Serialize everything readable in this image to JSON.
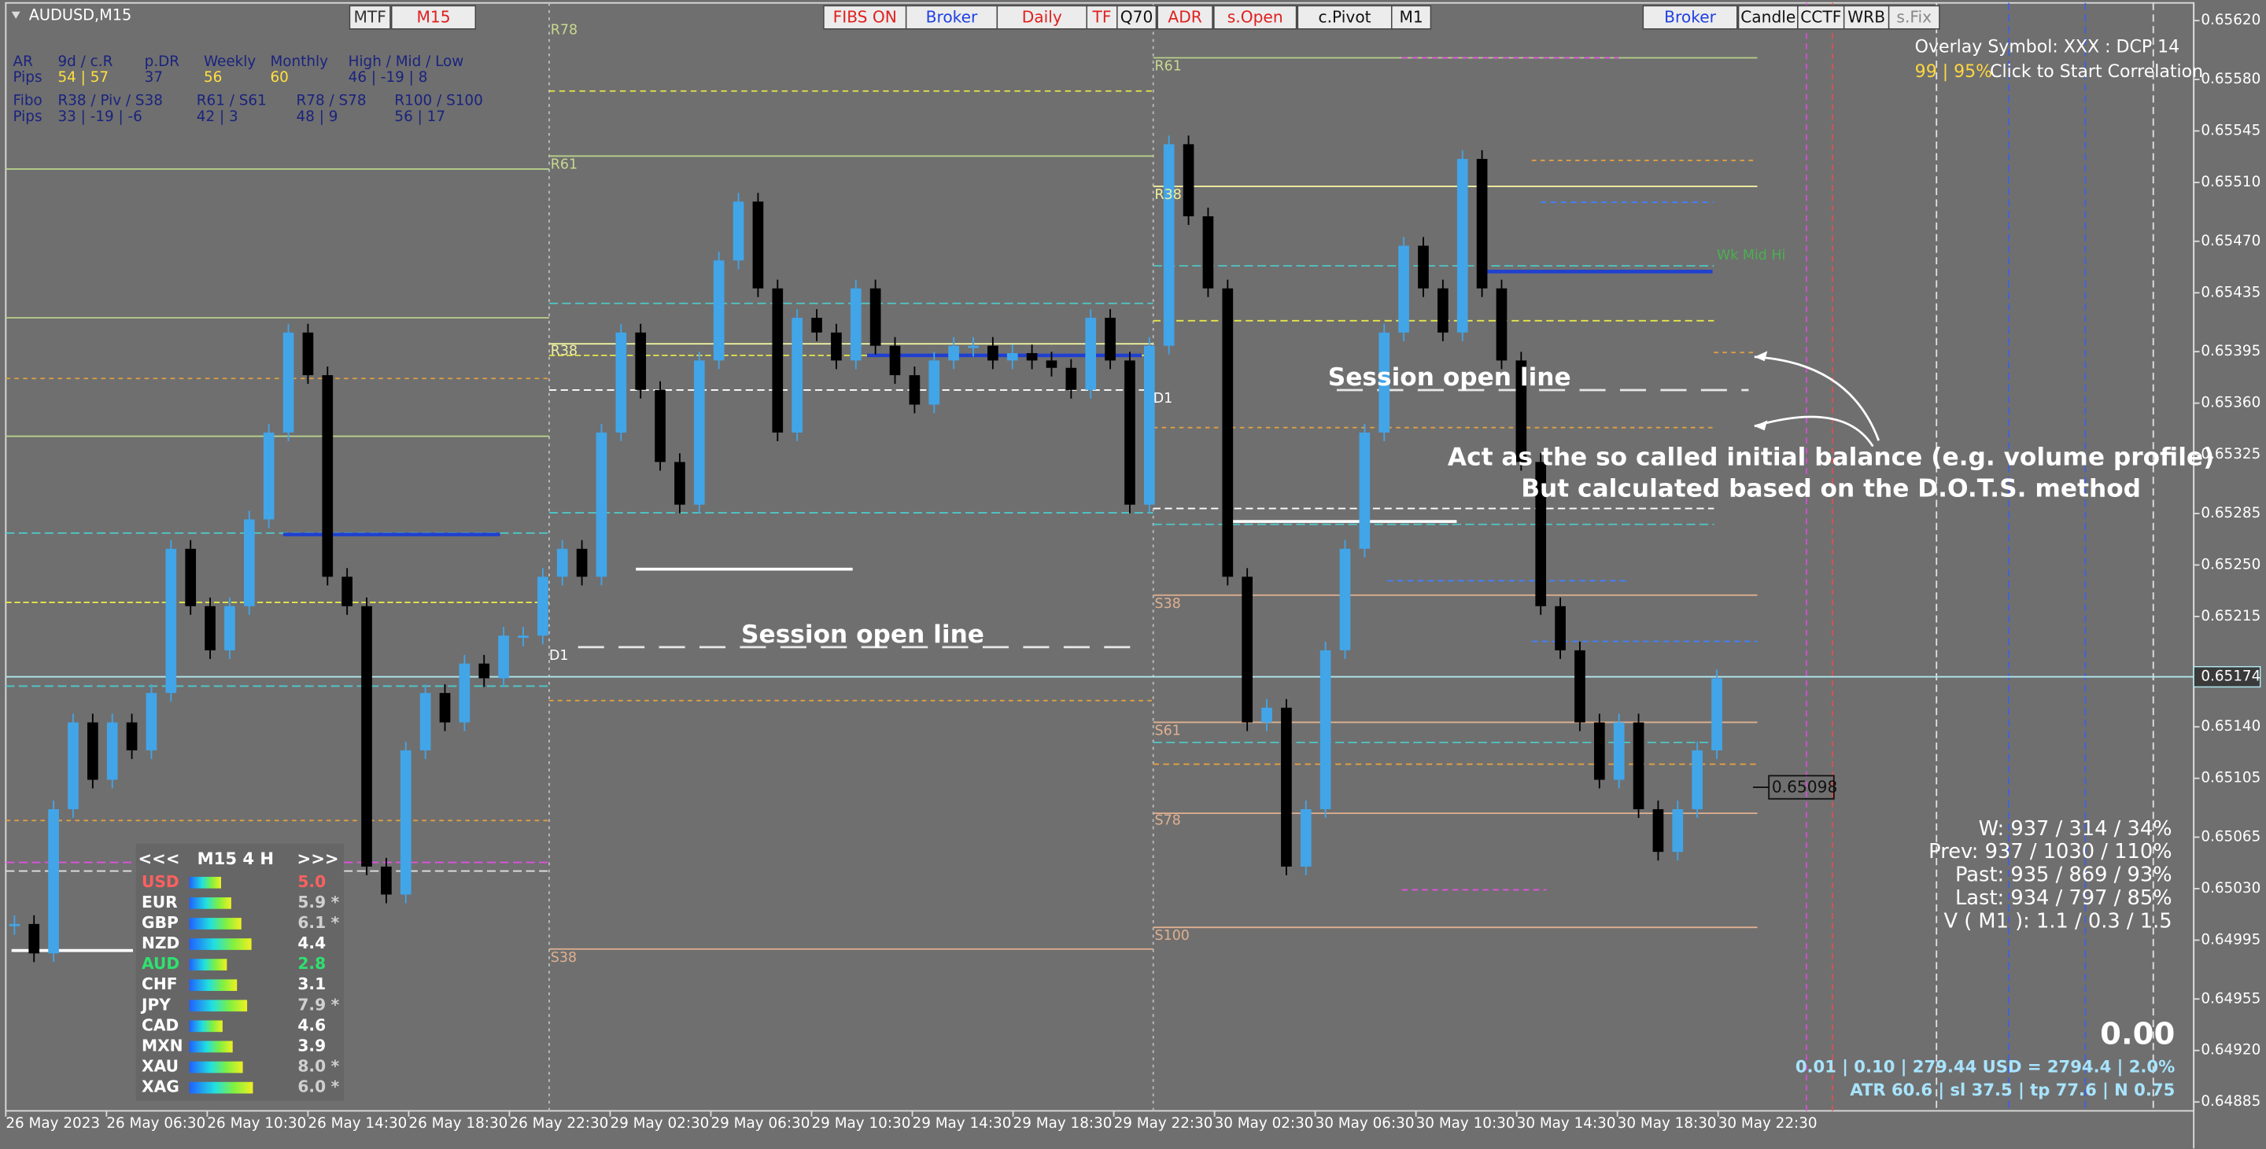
{
  "window": {
    "title": "AUDUSD,M15"
  },
  "buttons": [
    "MTF",
    "M15",
    "FIBS ON",
    "Broker",
    "Daily",
    "TF",
    "Q70",
    "ADR",
    "s.Open",
    "c.Pivot",
    "M1",
    "Broker",
    "Candle",
    "CCTF",
    "WRB",
    "s.Fix"
  ],
  "stats": {
    "rows": [
      [
        "AR",
        "9d / c.R",
        "p.DR",
        "Weekly",
        "Monthly",
        "High / Mid / Low"
      ],
      [
        "Pips",
        "54 | 57",
        "37",
        "56",
        "60",
        "46 | -19 | 8"
      ]
    ]
  },
  "fibo": {
    "rows": [
      [
        "Fibo",
        "R38 / Piv / S38",
        "R61 / S61",
        "R78 / S78",
        "R100 / S100"
      ],
      [
        "Pips",
        "33 | -19 | -6",
        "42 | 3",
        "48 | 9",
        "56 | 17"
      ]
    ]
  },
  "levels": [
    "R78",
    "R61",
    "R38",
    "D1",
    "S38",
    "R61",
    "R38",
    "D1",
    "S38",
    "S61",
    "S78",
    "S100",
    "Wk Mid Hi"
  ],
  "annotations": [
    "Session open line",
    "Session open line",
    "Act as the so called initial balance (e.g. volume profile)",
    "But  calculated based on the D.O.T.S. method"
  ],
  "overlay": {
    "symbol": "Overlay Symbol: XXX : DCP 14",
    "correlation": "99 | 95%",
    "action": "Click to Start Correlation"
  },
  "range_stats": [
    "W: 937 / 314 / 34%",
    "Prev: 937 / 1030 / 110%",
    "Past: 935 / 869 / 93%",
    "Last: 934 / 797 / 85%",
    "V ( M1 ): 1.1 / 0.3 / 1.5"
  ],
  "trade_info": {
    "profit": "0.00",
    "lots": "0.01 | 0.10 | 279.44 USD = 2794.4 | 2.0%",
    "atr": "ATR 60.6 | sl 37.5 | tp 77.6 | N 0.75"
  },
  "price_tag": "0.65098",
  "currency_panel": {
    "header": [
      "<<<",
      "M15 4 H",
      ">>>"
    ],
    "rows": [
      {
        "name": "USD",
        "value": "5.0"
      },
      {
        "name": "EUR",
        "value": "5.9",
        "flag": "*"
      },
      {
        "name": "GBP",
        "value": "6.1",
        "flag": "*"
      },
      {
        "name": "NZD",
        "value": "4.4"
      },
      {
        "name": "AUD",
        "value": "2.8"
      },
      {
        "name": "CHF",
        "value": "3.1"
      },
      {
        "name": "JPY",
        "value": "7.9",
        "flag": "*"
      },
      {
        "name": "CAD",
        "value": "4.6"
      },
      {
        "name": "MXN",
        "value": "3.9"
      },
      {
        "name": "XAU",
        "value": "8.0",
        "flag": "*"
      },
      {
        "name": "XAG",
        "value": "6.0",
        "flag": "*"
      }
    ]
  },
  "price_axis": {
    "lim": [
      0.64878,
      0.65634
    ],
    "ticks": [
      {
        "value": 0.6562,
        "label": "0.65620"
      },
      {
        "value": 0.6558,
        "label": "0.65580"
      },
      {
        "value": 0.65545,
        "label": "0.65545"
      },
      {
        "value": 0.6551,
        "label": "0.65510"
      },
      {
        "value": 0.6547,
        "label": "0.65470"
      },
      {
        "value": 0.65435,
        "label": "0.65435"
      },
      {
        "value": 0.65395,
        "label": "0.65395"
      },
      {
        "value": 0.6536,
        "label": "0.65360"
      },
      {
        "value": 0.65325,
        "label": "0.65325"
      },
      {
        "value": 0.65285,
        "label": "0.65285"
      },
      {
        "value": 0.6525,
        "label": "0.65250"
      },
      {
        "value": 0.65215,
        "label": "0.65215"
      },
      {
        "value": 0.6514,
        "label": "0.65140"
      },
      {
        "value": 0.65105,
        "label": "0.65105"
      },
      {
        "value": 0.65065,
        "label": "0.65065"
      },
      {
        "value": 0.6503,
        "label": "0.65030"
      },
      {
        "value": 0.64995,
        "label": "0.64995"
      },
      {
        "value": 0.64955,
        "label": "0.64955"
      },
      {
        "value": 0.6492,
        "label": "0.64920"
      },
      {
        "value": 0.64885,
        "label": "0.64885"
      }
    ],
    "current": {
      "value": 0.65174,
      "label": "0.65174"
    }
  },
  "time_axis": {
    "labels": [
      "26 May 2023",
      "26 May 06:30",
      "26 May 10:30",
      "26 May 14:30",
      "26 May 18:30",
      "26 May 22:30",
      "29 May 02:30",
      "29 May 06:30",
      "29 May 10:30",
      "29 May 14:30",
      "29 May 18:30",
      "29 May 22:30",
      "30 May 02:30",
      "30 May 06:30",
      "30 May 10:30",
      "30 May 14:30",
      "30 May 18:30",
      "30 May 22:30"
    ]
  },
  "closes": [
    0.65006,
    0.64986,
    0.65084,
    0.65143,
    0.65104,
    0.65143,
    0.65124,
    0.65163,
    0.65261,
    0.65222,
    0.65192,
    0.65222,
    0.65281,
    0.6534,
    0.65408,
    0.65379,
    0.65242,
    0.65222,
    0.65045,
    0.65026,
    0.65124,
    0.65163,
    0.65143,
    0.65183,
    0.65173,
    0.65202,
    0.65202,
    0.65242,
    0.65261,
    0.65242,
    0.6534,
    0.65408,
    0.65369,
    0.6532,
    0.65291,
    0.65389,
    0.65457,
    0.65497,
    0.65438,
    0.6534,
    0.65418,
    0.65408,
    0.65389,
    0.65438,
    0.65399,
    0.65379,
    0.65359,
    0.65389,
    0.65399,
    0.65399,
    0.65389,
    0.65394,
    0.65389,
    0.65384,
    0.65369,
    0.65418,
    0.65389,
    0.65291,
    0.65399,
    0.65536,
    0.65487,
    0.65438,
    0.65242,
    0.65143,
    0.65153,
    0.65045,
    0.65084,
    0.65192,
    0.65261,
    0.6534,
    0.65408,
    0.65467,
    0.65438,
    0.65408,
    0.65526,
    0.65438,
    0.65389,
    0.6532,
    0.65222,
    0.65192,
    0.65143,
    0.65104,
    0.65143,
    0.65084,
    0.65055,
    0.65084,
    0.65124,
    0.65173
  ]
}
